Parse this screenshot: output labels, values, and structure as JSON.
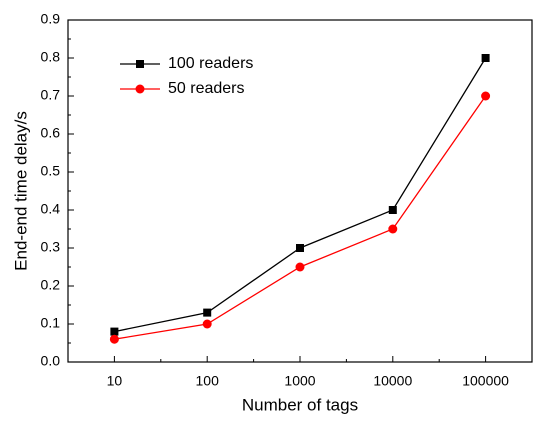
{
  "chart_data": {
    "type": "line",
    "x_label": "Number of tags",
    "y_label": "End-end time delay/s",
    "categories": [
      "10",
      "100",
      "1000",
      "10000",
      "100000"
    ],
    "series": [
      {
        "name": "100 readers",
        "color": "#000000",
        "marker": "square",
        "values": [
          0.08,
          0.13,
          0.3,
          0.4,
          0.8
        ]
      },
      {
        "name": "50 readers",
        "color": "#ff0000",
        "marker": "circle",
        "values": [
          0.06,
          0.1,
          0.25,
          0.35,
          0.7
        ]
      }
    ],
    "ylim": [
      0,
      0.9
    ],
    "yticks": [
      {
        "value": 0,
        "label": "0.0"
      },
      0.1,
      0.2,
      0.3,
      0.4,
      0.5,
      0.6,
      0.7,
      0.8,
      0.9
    ],
    "legend": "upper-left"
  }
}
